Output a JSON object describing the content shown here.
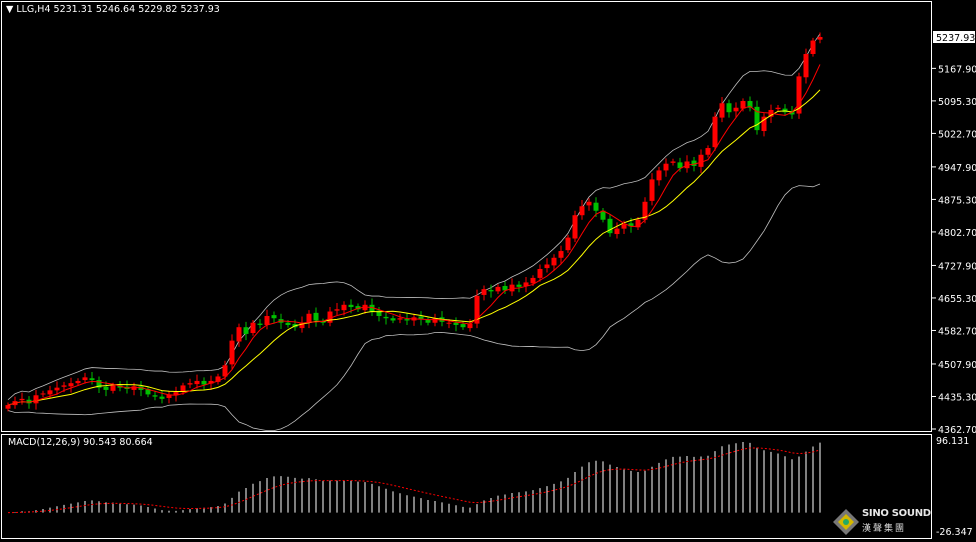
{
  "header": {
    "symbol": "LLG,H4",
    "open": "5231.31",
    "high": "5246.64",
    "low": "5229.82",
    "close": "5237.93"
  },
  "macd_pane": {
    "label": "MACD(12,26,9) 90.543 80.664",
    "max_label": "96.131",
    "min_label": "-26.347"
  },
  "logo": {
    "text_en": "SINO SOUND",
    "text_cn": "漢聲集團"
  },
  "colors": {
    "up": "#ff0000",
    "down": "#00c000",
    "ma_fast": "#ff0000",
    "ma_slow": "#ffff00",
    "bands": "#c0c0c0",
    "macd_hist": "#ffffff",
    "signal": "#ff0000"
  },
  "chart_data": {
    "type": "candlestick",
    "title": "LLG,H4",
    "current_price": "5237.93",
    "y_ticks": [
      "5167.90",
      "5095.30",
      "5022.70",
      "4947.90",
      "4875.30",
      "4802.70",
      "4727.90",
      "4655.30",
      "4582.70",
      "4507.90",
      "4435.30",
      "4362.70"
    ],
    "ylim": [
      4362.7,
      5237.93
    ],
    "closes": [
      4416,
      4425,
      4430,
      4420,
      4438,
      4442,
      4449,
      4455,
      4460,
      4465,
      4470,
      4478,
      4472,
      4455,
      4450,
      4460,
      4455,
      4452,
      4458,
      4450,
      4440,
      4435,
      4430,
      4440,
      4445,
      4460,
      4465,
      4470,
      4462,
      4470,
      4480,
      4505,
      4560,
      4590,
      4575,
      4600,
      4595,
      4615,
      4610,
      4600,
      4595,
      4590,
      4600,
      4620,
      4605,
      4600,
      4625,
      4630,
      4640,
      4635,
      4630,
      4640,
      4625,
      4615,
      4610,
      4605,
      4610,
      4605,
      4612,
      4608,
      4600,
      4610,
      4602,
      4600,
      4595,
      4590,
      4598,
      4660,
      4675,
      4670,
      4680,
      4672,
      4685,
      4680,
      4690,
      4700,
      4720,
      4730,
      4745,
      4760,
      4790,
      4840,
      4860,
      4870,
      4850,
      4830,
      4800,
      4810,
      4820,
      4815,
      4830,
      4870,
      4920,
      4940,
      4955,
      4960,
      4945,
      4960,
      4950,
      4975,
      4990,
      5060,
      5090,
      5070,
      5080,
      5095,
      5080,
      5030,
      5060,
      5075,
      5080,
      5070,
      5065,
      5150,
      5200,
      5230,
      5237.93
    ],
    "indicators": [
      "MA fast (red)",
      "MA slow (yellow)",
      "Bollinger Bands (20,2)",
      "MACD(12,26,9)"
    ],
    "macd_range": [
      -26.347,
      96.131
    ]
  }
}
